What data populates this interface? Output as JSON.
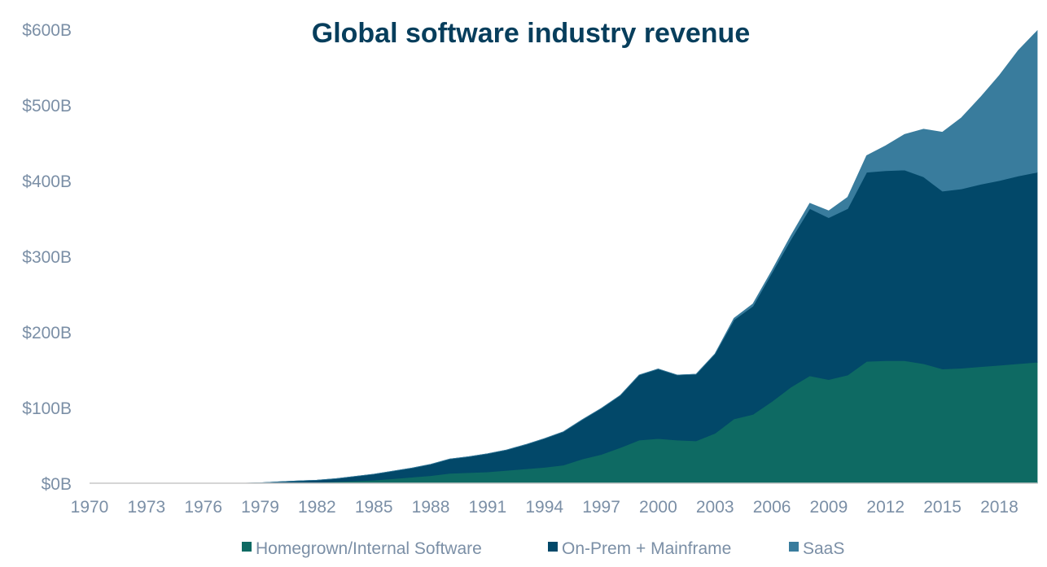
{
  "chart_data": {
    "type": "area",
    "title": "Global software industry revenue",
    "xlabel": "",
    "ylabel": "",
    "stacked": true,
    "x": [
      1970,
      1971,
      1972,
      1973,
      1974,
      1975,
      1976,
      1977,
      1978,
      1979,
      1980,
      1981,
      1982,
      1983,
      1984,
      1985,
      1986,
      1987,
      1988,
      1989,
      1990,
      1991,
      1992,
      1993,
      1994,
      1995,
      1996,
      1997,
      1998,
      1999,
      2000,
      2001,
      2002,
      2003,
      2004,
      2005,
      2006,
      2007,
      2008,
      2009,
      2010,
      2011,
      2012,
      2013,
      2014,
      2015,
      2016,
      2017,
      2018,
      2019,
      2020
    ],
    "x_tick_labels": [
      "1970",
      "1973",
      "1976",
      "1979",
      "1982",
      "1985",
      "1988",
      "1991",
      "1994",
      "1997",
      "2000",
      "2003",
      "2006",
      "2009",
      "2012",
      "2015",
      "2018"
    ],
    "y_tick_labels": [
      "$0B",
      "$100B",
      "$200B",
      "$300B",
      "$400B",
      "$500B",
      "$600B"
    ],
    "ylim": [
      0,
      600
    ],
    "legend_position": "bottom",
    "grid": false,
    "series": [
      {
        "name": "Homegrown/Internal Software",
        "color": "#0e6a63",
        "values": [
          0,
          0,
          0,
          0,
          0,
          0,
          0,
          0,
          0,
          0,
          0.3,
          0.6,
          1,
          2,
          3,
          4,
          6,
          8,
          10,
          13,
          14,
          15,
          17,
          19,
          21,
          24,
          32,
          38,
          47,
          57,
          59,
          57,
          56,
          66,
          85,
          91,
          108,
          127,
          142,
          137,
          143,
          161,
          162,
          162,
          158,
          151,
          152,
          154,
          156,
          158,
          160
        ]
      },
      {
        "name": "On-Prem + Mainframe",
        "color": "#024869",
        "values": [
          0,
          0,
          0,
          0,
          0,
          0,
          0,
          0,
          0,
          0.5,
          1.5,
          2.4,
          3,
          4,
          6,
          8,
          10,
          12,
          15,
          19,
          21,
          24,
          27,
          32,
          38,
          44,
          52,
          61,
          69,
          86,
          92,
          86,
          88,
          105,
          131,
          143,
          170,
          195,
          221,
          214,
          220,
          250,
          251,
          252,
          247,
          235,
          237,
          241,
          244,
          248,
          251
        ]
      },
      {
        "name": "SaaS",
        "color": "#397c9d",
        "values": [
          0,
          0,
          0,
          0,
          0,
          0,
          0,
          0,
          0,
          0,
          0,
          0,
          0,
          0,
          0,
          0,
          0,
          0,
          0,
          0,
          0,
          0,
          0,
          0,
          0,
          0,
          0,
          0,
          0,
          0,
          0,
          0,
          0,
          0,
          2,
          3,
          3,
          5,
          7,
          9,
          15,
          22,
          33,
          47,
          63,
          78,
          94,
          115,
          139,
          166,
          187
        ]
      }
    ]
  }
}
